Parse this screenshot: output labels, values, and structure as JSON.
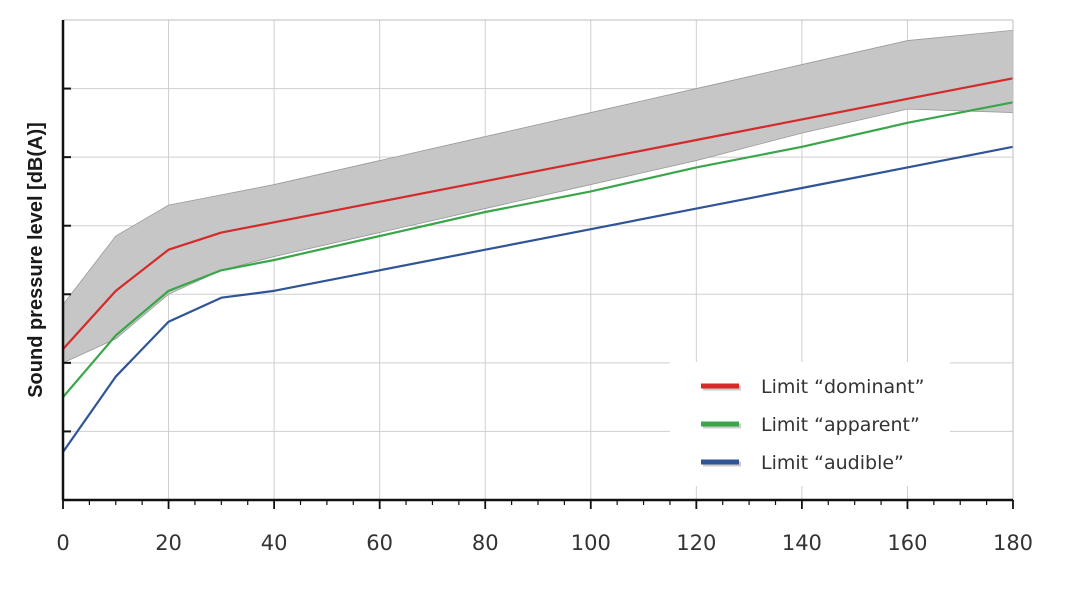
{
  "chart_data": {
    "type": "line",
    "title": "",
    "xlabel": "",
    "ylabel": "Sound pressure level [dB(A)]",
    "xlim": [
      0,
      180
    ],
    "ylim": [
      0,
      7
    ],
    "xticks": [
      "0",
      "20",
      "40",
      "60",
      "80",
      "100",
      "120",
      "140",
      "160",
      "180"
    ],
    "y_tick_labels_shown": false,
    "grid": true,
    "legend_position": "bottom-right",
    "band": {
      "color": "#c6c6c6",
      "x": [
        0,
        10,
        20,
        30,
        40,
        60,
        80,
        100,
        120,
        140,
        160,
        180
      ],
      "lower": [
        2.0,
        2.35,
        3.0,
        3.35,
        3.55,
        3.9,
        4.25,
        4.6,
        4.95,
        5.35,
        5.7,
        5.65
      ],
      "upper": [
        2.85,
        3.85,
        4.3,
        4.45,
        4.6,
        4.95,
        5.3,
        5.65,
        6.0,
        6.35,
        6.7,
        6.85
      ]
    },
    "series": [
      {
        "name": "Limit “dominant”",
        "color": "#d62a2a",
        "x": [
          0,
          10,
          20,
          30,
          40,
          60,
          80,
          100,
          120,
          140,
          160,
          180
        ],
        "y": [
          2.2,
          3.05,
          3.65,
          3.9,
          4.05,
          4.35,
          4.65,
          4.95,
          5.25,
          5.55,
          5.85,
          6.15
        ]
      },
      {
        "name": "Limit “apparent”",
        "color": "#3aa64a",
        "x": [
          0,
          10,
          20,
          30,
          40,
          60,
          80,
          100,
          120,
          140,
          160,
          180
        ],
        "y": [
          1.5,
          2.4,
          3.05,
          3.35,
          3.5,
          3.85,
          4.2,
          4.5,
          4.85,
          5.15,
          5.5,
          5.8
        ]
      },
      {
        "name": "Limit “audible”",
        "color": "#2f5597",
        "x": [
          0,
          10,
          20,
          30,
          40,
          60,
          80,
          100,
          120,
          140,
          160,
          180
        ],
        "y": [
          0.7,
          1.8,
          2.6,
          2.95,
          3.05,
          3.35,
          3.65,
          3.95,
          4.25,
          4.55,
          4.85,
          5.15
        ]
      }
    ]
  }
}
